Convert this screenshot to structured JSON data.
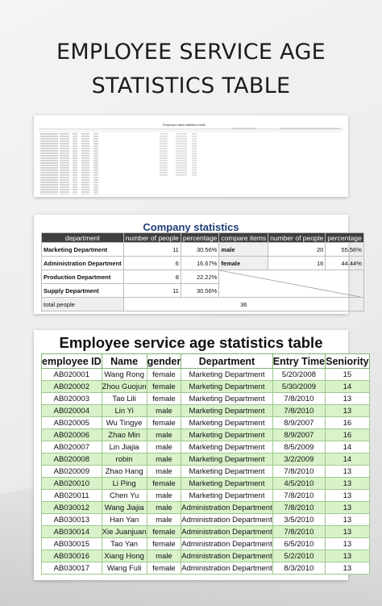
{
  "page": {
    "title_line1": "EMPLOYEE SERVICE AGE",
    "title_line2": "STATISTICS TABLE"
  },
  "thumbnail": {
    "title": "Employee data statistics table"
  },
  "company_stats": {
    "title": "Company statistics",
    "headers": [
      "department",
      "number of people",
      "percentage",
      "compare items",
      "number of people",
      "percentage"
    ],
    "rows": [
      {
        "department": "Marketing Department",
        "people": "11",
        "percentage": "30.56%",
        "compare_item": "male",
        "compare_people": "20",
        "compare_percentage": "55.56%"
      },
      {
        "department": "Administration Department",
        "people": "6",
        "percentage": "16.67%",
        "compare_item": "female",
        "compare_people": "16",
        "compare_percentage": "44.44%"
      },
      {
        "department": "Production Department",
        "people": "8",
        "percentage": "22.22%"
      },
      {
        "department": "Supply Department",
        "people": "11",
        "percentage": "30.56%"
      }
    ],
    "total_label": "total people",
    "total_value": "36"
  },
  "service_age": {
    "title": "Employee service age statistics table",
    "headers": [
      "employee ID",
      "Name",
      "gender",
      "Department",
      "Entry Time",
      "Seniority"
    ],
    "rows": [
      [
        "AB020001",
        "Wang Rong",
        "female",
        "Marketing Department",
        "5/20/2008",
        "15"
      ],
      [
        "AB020002",
        "Zhou Guojun",
        "female",
        "Marketing Department",
        "5/30/2009",
        "14"
      ],
      [
        "AB020003",
        "Tao Lili",
        "female",
        "Marketing Department",
        "7/8/2010",
        "13"
      ],
      [
        "AB020004",
        "Lin Yi",
        "male",
        "Marketing Department",
        "7/8/2010",
        "13"
      ],
      [
        "AB020005",
        "Wu Tingye",
        "female",
        "Marketing Department",
        "8/9/2007",
        "16"
      ],
      [
        "AB020006",
        "Zhao Min",
        "male",
        "Marketing Department",
        "8/9/2007",
        "16"
      ],
      [
        "AB020007",
        "Lin Jiajia",
        "male",
        "Marketing Department",
        "8/5/2009",
        "14"
      ],
      [
        "AB020008",
        "robin",
        "male",
        "Marketing Department",
        "3/2/2009",
        "14"
      ],
      [
        "AB020009",
        "Zhao Hang",
        "male",
        "Marketing Department",
        "7/8/2010",
        "13"
      ],
      [
        "AB020010",
        "Li Ping",
        "female",
        "Marketing Department",
        "4/5/2010",
        "13"
      ],
      [
        "AB020011",
        "Chen Yu",
        "male",
        "Marketing Department",
        "7/8/2010",
        "13"
      ],
      [
        "AB030012",
        "Wang Jiajia",
        "male",
        "Administration Department",
        "7/8/2010",
        "13"
      ],
      [
        "AB030013",
        "Han Yan",
        "male",
        "Administration Department",
        "3/5/2010",
        "13"
      ],
      [
        "AB030014",
        "Xie Juanjuan",
        "female",
        "Administration Department",
        "7/8/2010",
        "13"
      ],
      [
        "AB030015",
        "Tao Yan",
        "female",
        "Administration Department",
        "6/5/2010",
        "13"
      ],
      [
        "AB030016",
        "Xiang Hong",
        "male",
        "Administration Department",
        "5/2/2010",
        "13"
      ],
      [
        "AB030017",
        "Wang Fuli",
        "female",
        "Administration Department",
        "8/3/2010",
        "13"
      ]
    ]
  },
  "colors": {
    "row_even": "#d9f2c9",
    "border_green": "#9fc98e",
    "stats_header": "#3f3f3f",
    "stats_title": "#1f3f76"
  }
}
